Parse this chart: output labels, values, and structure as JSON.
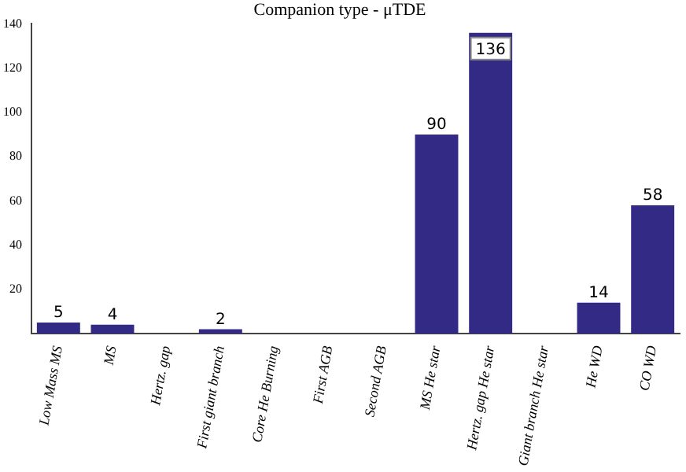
{
  "chart_data": {
    "type": "bar",
    "title": "Companion type - μTDE",
    "categories": [
      "Low Mass MS",
      "MS",
      "Hertz. gap",
      "First giant branch",
      "Core He Burning",
      "First AGB",
      "Second AGB",
      "MS He star",
      "Hertz. gap He star",
      "Giant branch He star",
      "He WD",
      "CO WD"
    ],
    "values": [
      5,
      4,
      0,
      2,
      0,
      0,
      0,
      90,
      136,
      0,
      14,
      58
    ],
    "value_labels": [
      "5",
      "4",
      null,
      "2",
      null,
      null,
      null,
      "90",
      "136",
      null,
      "14",
      "58"
    ],
    "color": "#332a85",
    "ylim": [
      0,
      140
    ],
    "yticks": [
      20,
      40,
      60,
      80,
      100,
      120,
      140
    ],
    "grid": false,
    "legend": false
  }
}
